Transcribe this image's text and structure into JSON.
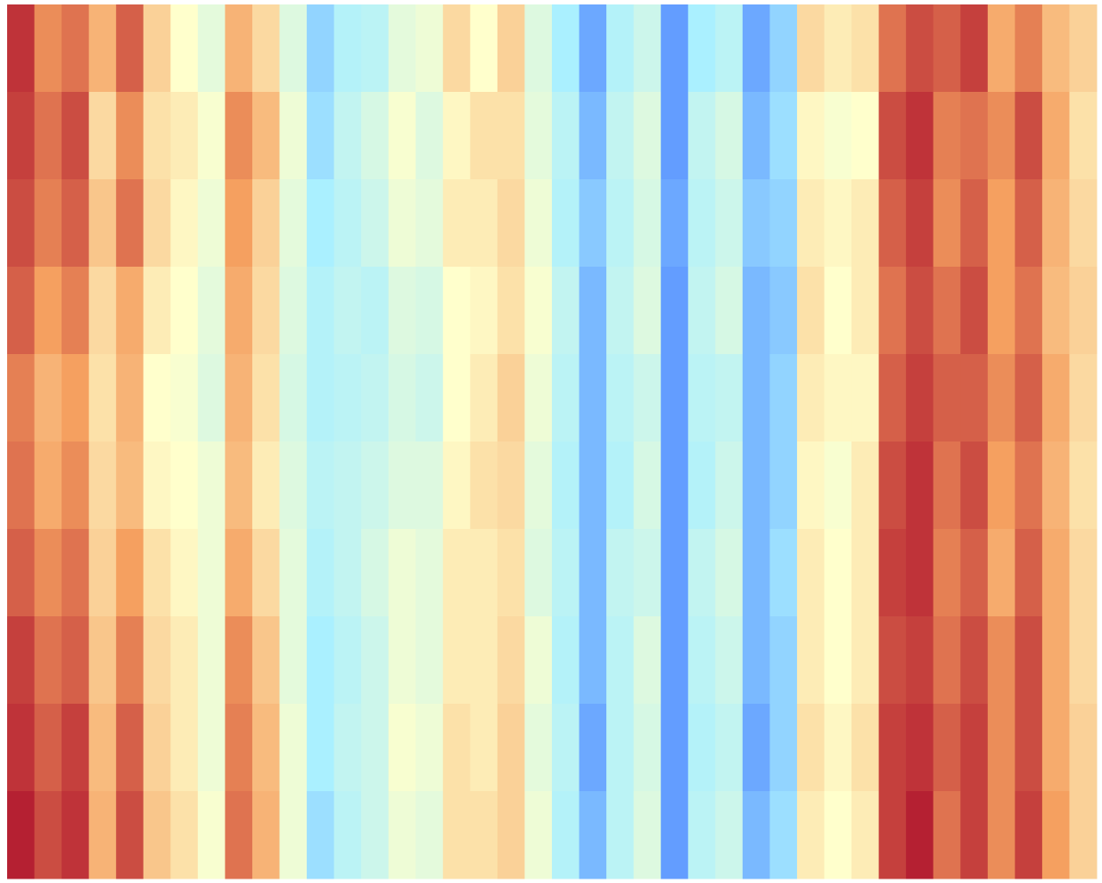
{
  "chart_data": {
    "type": "heatmap",
    "colors": [
      "#3366ff",
      "#aaf0ff",
      "#ffffcc",
      "#f5a060",
      "#a50026"
    ],
    "zlim": [
      0,
      1
    ],
    "z": [
      [
        0.92,
        0.78,
        0.82,
        0.7,
        0.85,
        0.62,
        0.5,
        0.42,
        0.7,
        0.6,
        0.4,
        0.2,
        0.28,
        0.3,
        0.42,
        0.45,
        0.6,
        0.5,
        0.62,
        0.4,
        0.25,
        0.12,
        0.28,
        0.35,
        0.1,
        0.25,
        0.3,
        0.12,
        0.2,
        0.6,
        0.55,
        0.58,
        0.82,
        0.88,
        0.85,
        0.9,
        0.72,
        0.8,
        0.68,
        0.62
      ],
      [
        0.9,
        0.82,
        0.88,
        0.6,
        0.78,
        0.58,
        0.55,
        0.48,
        0.78,
        0.68,
        0.45,
        0.22,
        0.32,
        0.38,
        0.48,
        0.4,
        0.52,
        0.58,
        0.58,
        0.42,
        0.3,
        0.15,
        0.32,
        0.4,
        0.1,
        0.32,
        0.38,
        0.15,
        0.22,
        0.52,
        0.48,
        0.5,
        0.88,
        0.92,
        0.8,
        0.82,
        0.78,
        0.88,
        0.72,
        0.58
      ],
      [
        0.88,
        0.8,
        0.85,
        0.65,
        0.82,
        0.6,
        0.52,
        0.45,
        0.75,
        0.62,
        0.42,
        0.25,
        0.3,
        0.35,
        0.45,
        0.42,
        0.55,
        0.55,
        0.6,
        0.45,
        0.28,
        0.18,
        0.3,
        0.38,
        0.12,
        0.3,
        0.35,
        0.18,
        0.2,
        0.55,
        0.52,
        0.55,
        0.85,
        0.9,
        0.78,
        0.85,
        0.75,
        0.85,
        0.7,
        0.6
      ],
      [
        0.85,
        0.75,
        0.8,
        0.6,
        0.72,
        0.55,
        0.5,
        0.42,
        0.72,
        0.6,
        0.4,
        0.28,
        0.32,
        0.3,
        0.4,
        0.38,
        0.5,
        0.52,
        0.58,
        0.48,
        0.32,
        0.15,
        0.32,
        0.4,
        0.1,
        0.32,
        0.38,
        0.15,
        0.18,
        0.58,
        0.5,
        0.55,
        0.82,
        0.88,
        0.82,
        0.88,
        0.75,
        0.82,
        0.68,
        0.62
      ],
      [
        0.8,
        0.7,
        0.75,
        0.58,
        0.7,
        0.5,
        0.48,
        0.4,
        0.7,
        0.58,
        0.38,
        0.28,
        0.3,
        0.32,
        0.38,
        0.35,
        0.5,
        0.55,
        0.62,
        0.45,
        0.3,
        0.15,
        0.3,
        0.35,
        0.1,
        0.3,
        0.32,
        0.15,
        0.2,
        0.55,
        0.52,
        0.52,
        0.85,
        0.9,
        0.85,
        0.85,
        0.78,
        0.85,
        0.72,
        0.6
      ],
      [
        0.82,
        0.72,
        0.78,
        0.6,
        0.68,
        0.52,
        0.5,
        0.45,
        0.68,
        0.55,
        0.4,
        0.3,
        0.32,
        0.35,
        0.4,
        0.4,
        0.52,
        0.58,
        0.6,
        0.42,
        0.28,
        0.15,
        0.28,
        0.38,
        0.1,
        0.28,
        0.35,
        0.15,
        0.2,
        0.52,
        0.48,
        0.55,
        0.88,
        0.92,
        0.82,
        0.88,
        0.75,
        0.82,
        0.7,
        0.58
      ],
      [
        0.85,
        0.78,
        0.82,
        0.62,
        0.75,
        0.58,
        0.52,
        0.45,
        0.72,
        0.6,
        0.42,
        0.28,
        0.32,
        0.38,
        0.45,
        0.42,
        0.55,
        0.55,
        0.58,
        0.4,
        0.3,
        0.15,
        0.32,
        0.35,
        0.1,
        0.32,
        0.38,
        0.15,
        0.22,
        0.55,
        0.5,
        0.55,
        0.9,
        0.92,
        0.8,
        0.85,
        0.72,
        0.85,
        0.72,
        0.6
      ],
      [
        0.9,
        0.82,
        0.85,
        0.65,
        0.8,
        0.6,
        0.55,
        0.45,
        0.78,
        0.65,
        0.42,
        0.25,
        0.3,
        0.35,
        0.45,
        0.42,
        0.55,
        0.55,
        0.6,
        0.45,
        0.28,
        0.15,
        0.3,
        0.4,
        0.1,
        0.3,
        0.35,
        0.15,
        0.2,
        0.55,
        0.5,
        0.55,
        0.88,
        0.9,
        0.82,
        0.88,
        0.78,
        0.88,
        0.72,
        0.6
      ],
      [
        0.92,
        0.85,
        0.9,
        0.68,
        0.85,
        0.62,
        0.55,
        0.45,
        0.8,
        0.68,
        0.45,
        0.25,
        0.32,
        0.35,
        0.48,
        0.45,
        0.58,
        0.55,
        0.62,
        0.42,
        0.3,
        0.12,
        0.3,
        0.38,
        0.1,
        0.28,
        0.32,
        0.12,
        0.2,
        0.58,
        0.52,
        0.58,
        0.9,
        0.92,
        0.85,
        0.9,
        0.78,
        0.88,
        0.72,
        0.62
      ],
      [
        0.95,
        0.88,
        0.92,
        0.7,
        0.88,
        0.65,
        0.58,
        0.48,
        0.82,
        0.7,
        0.45,
        0.22,
        0.3,
        0.35,
        0.45,
        0.42,
        0.58,
        0.58,
        0.62,
        0.45,
        0.28,
        0.15,
        0.3,
        0.4,
        0.1,
        0.3,
        0.35,
        0.15,
        0.22,
        0.55,
        0.5,
        0.55,
        0.9,
        0.95,
        0.82,
        0.9,
        0.78,
        0.9,
        0.75,
        0.62
      ]
    ]
  }
}
